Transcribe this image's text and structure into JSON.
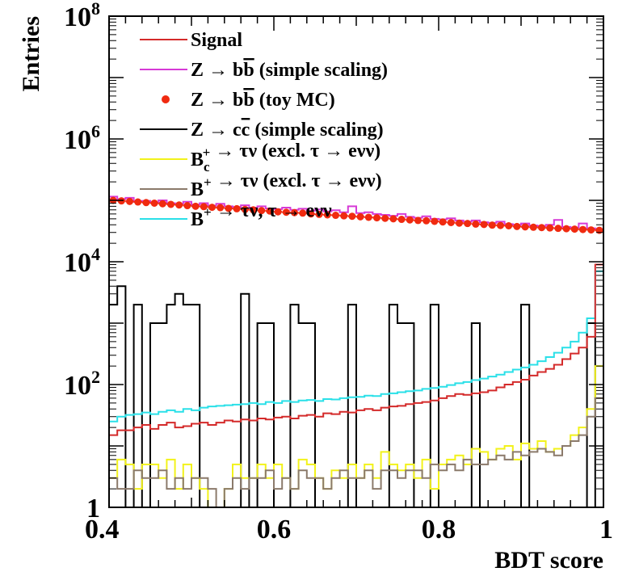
{
  "chart_data": {
    "type": "line",
    "xlabel": "BDT score",
    "ylabel": "Entries",
    "xlim": [
      0.4,
      1.0
    ],
    "ylim": [
      1,
      100000000
    ],
    "yscale": "log",
    "grid": false,
    "legend_position": "top-left",
    "x_tick_labels": [
      "0.4",
      "0.6",
      "0.8",
      "1"
    ],
    "y_ticks": [
      {
        "base": "1",
        "exp": ""
      },
      {
        "base": "10",
        "exp": "2"
      },
      {
        "base": "10",
        "exp": "4"
      },
      {
        "base": "10",
        "exp": "6"
      },
      {
        "base": "10",
        "exp": "8"
      }
    ],
    "x_bins": [
      0.4,
      0.41,
      0.42,
      0.43,
      0.44,
      0.45,
      0.46,
      0.47,
      0.48,
      0.49,
      0.5,
      0.51,
      0.52,
      0.53,
      0.54,
      0.55,
      0.56,
      0.57,
      0.58,
      0.59,
      0.6,
      0.61,
      0.62,
      0.63,
      0.64,
      0.65,
      0.66,
      0.67,
      0.68,
      0.69,
      0.7,
      0.71,
      0.72,
      0.73,
      0.74,
      0.75,
      0.76,
      0.77,
      0.78,
      0.79,
      0.8,
      0.81,
      0.82,
      0.83,
      0.84,
      0.85,
      0.86,
      0.87,
      0.88,
      0.89,
      0.9,
      0.91,
      0.92,
      0.93,
      0.94,
      0.95,
      0.96,
      0.97,
      0.98,
      0.99,
      1.0
    ],
    "series": [
      {
        "name": "Signal",
        "legend_parts": [
          {
            "t": "Signal"
          }
        ],
        "style": "hist",
        "color": "#d42a2a",
        "values": [
          15,
          18,
          18,
          20,
          22,
          19,
          22,
          24,
          20,
          21,
          23,
          24,
          22,
          24,
          26,
          25,
          27,
          26,
          28,
          27,
          29,
          30,
          28,
          31,
          32,
          30,
          34,
          33,
          36,
          35,
          38,
          40,
          38,
          42,
          44,
          45,
          48,
          50,
          52,
          55,
          60,
          65,
          70,
          68,
          72,
          75,
          80,
          90,
          100,
          110,
          120,
          140,
          160,
          180,
          210,
          260,
          320,
          400,
          600,
          9000
        ]
      },
      {
        "name": "Z → bb̄ (simple scaling)",
        "legend_parts": [
          {
            "t": "Z  → b"
          },
          {
            "t": "b",
            "bar": true
          },
          {
            "t": " (simple scaling)"
          }
        ],
        "style": "hist",
        "color": "#d63ad6",
        "values": [
          115000,
          105000,
          110000,
          95000,
          98000,
          92000,
          100000,
          90000,
          88000,
          95000,
          85000,
          90000,
          82000,
          88000,
          80000,
          78000,
          83000,
          76000,
          80000,
          74000,
          72000,
          76000,
          70000,
          73000,
          68000,
          71000,
          66000,
          69000,
          64000,
          80000,
          62000,
          64000,
          60000,
          58000,
          56000,
          60000,
          54000,
          52000,
          55000,
          50000,
          49000,
          51000,
          47000,
          45000,
          47000,
          44000,
          43000,
          45000,
          41000,
          40000,
          42000,
          39000,
          38000,
          40000,
          48000,
          37000,
          36000,
          42000,
          35000,
          34000
        ]
      },
      {
        "name": "Z → bb̄ (toy MC)",
        "legend_parts": [
          {
            "t": "Z  → b"
          },
          {
            "t": "b",
            "bar": true
          },
          {
            "t": " (toy MC)"
          }
        ],
        "style": "points",
        "color": "#f02a10",
        "values": [
          100000,
          98000,
          96000,
          94000,
          92000,
          90000,
          88000,
          86000,
          84000,
          82000,
          80000,
          79000,
          77000,
          76000,
          74000,
          73000,
          71000,
          70000,
          68000,
          67000,
          65000,
          64000,
          63000,
          62000,
          60000,
          59000,
          58000,
          57000,
          56000,
          55000,
          54000,
          53000,
          52000,
          51000,
          50000,
          49000,
          48000,
          47000,
          46500,
          45500,
          44500,
          43500,
          42500,
          42000,
          41000,
          40500,
          39500,
          39000,
          38500,
          37500,
          37000,
          36500,
          36000,
          35500,
          35000,
          34500,
          34000,
          33500,
          33000,
          32500
        ]
      },
      {
        "name": "Z → cc̄ (simple scaling)",
        "legend_parts": [
          {
            "t": "Z  → c"
          },
          {
            "t": "c",
            "bar": true
          },
          {
            "t": " (simple scaling)"
          }
        ],
        "style": "hist",
        "color": "#000000",
        "values": [
          2000,
          4000,
          1,
          2000,
          1,
          1000,
          1000,
          2000,
          3000,
          2000,
          2000,
          1,
          1,
          1,
          1,
          1,
          3000,
          1,
          1000,
          1000,
          1,
          1,
          2000,
          1000,
          1000,
          1,
          1,
          1,
          1,
          2000,
          1,
          1,
          1,
          1,
          2000,
          1000,
          1000,
          1,
          1,
          2000,
          1,
          1,
          1,
          1,
          1000,
          1,
          1,
          1,
          1,
          1,
          2000,
          1,
          1,
          1,
          1,
          1,
          1,
          1,
          1000,
          1
        ]
      },
      {
        "name": "B_c^+ → τν (excl. τ → eνν)",
        "legend_parts": [
          {
            "t": "B"
          },
          {
            "t": "c",
            "sub": true,
            "sup": "+"
          },
          {
            "t": "  →  τν (excl.  τ  → eνν)"
          }
        ],
        "style": "hist",
        "color": "#f2f21a",
        "values": [
          3,
          6,
          5,
          2,
          5,
          5,
          3,
          6,
          2,
          5,
          3,
          2,
          1,
          1,
          2,
          5,
          3,
          3,
          5,
          3,
          5,
          3,
          2,
          6,
          5,
          3,
          2,
          4,
          3,
          5,
          3,
          5,
          3,
          8,
          5,
          4,
          5,
          3,
          6,
          2,
          5,
          6,
          7,
          5,
          9,
          8,
          6,
          9,
          10,
          6,
          11,
          9,
          12,
          8,
          9,
          10,
          15,
          20,
          40,
          200
        ]
      },
      {
        "name": "B^+ → τν (excl. τ → eνν)",
        "legend_parts": [
          {
            "t": "B",
            "sup": "+"
          },
          {
            "t": "  →  τν (excl.  τ  → eνν)"
          }
        ],
        "style": "hist",
        "color": "#8b7a6b",
        "values": [
          3,
          2,
          2,
          4,
          3,
          3,
          4,
          2,
          3,
          2,
          3,
          3,
          2,
          1,
          2,
          3,
          2,
          3,
          3,
          4,
          2,
          3,
          2,
          4,
          3,
          3,
          2,
          3,
          4,
          3,
          3,
          4,
          2,
          4,
          4,
          3,
          4,
          4,
          3,
          5,
          4,
          5,
          4,
          6,
          5,
          5,
          6,
          7,
          6,
          8,
          7,
          8,
          9,
          8,
          7,
          10,
          12,
          15,
          30,
          60
        ]
      },
      {
        "name": "B^+ → τν, τ → eνν",
        "legend_parts": [
          {
            "t": "B",
            "sup": "+"
          },
          {
            "t": "  →  τν,  τ  → eνν"
          }
        ],
        "style": "hist",
        "color": "#2ae0e8",
        "values": [
          25,
          30,
          32,
          33,
          35,
          33,
          36,
          38,
          36,
          40,
          38,
          42,
          44,
          45,
          46,
          47,
          48,
          50,
          48,
          52,
          50,
          54,
          52,
          55,
          56,
          54,
          58,
          57,
          60,
          62,
          63,
          66,
          65,
          70,
          72,
          75,
          78,
          80,
          85,
          88,
          92,
          98,
          105,
          110,
          118,
          125,
          135,
          145,
          160,
          175,
          190,
          210,
          240,
          280,
          330,
          400,
          500,
          700,
          1200,
          7000
        ]
      }
    ]
  }
}
